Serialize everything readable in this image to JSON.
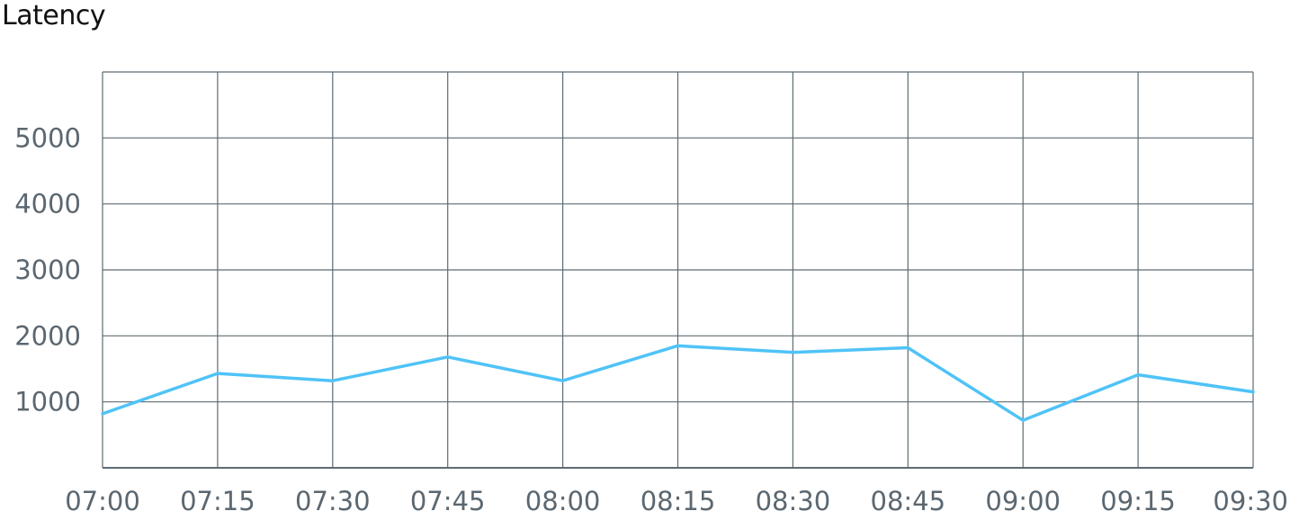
{
  "chart_data": {
    "type": "line",
    "title": "Latency",
    "xlabel": "",
    "ylabel": "",
    "x": [
      "07:00",
      "07:15",
      "07:30",
      "07:45",
      "08:00",
      "08:15",
      "08:30",
      "08:45",
      "09:00",
      "09:15",
      "09:30"
    ],
    "y_ticks": [
      "1000",
      "2000",
      "3000",
      "4000",
      "5000"
    ],
    "ylim": [
      0,
      6000
    ],
    "grid": true,
    "series": [
      {
        "values": [
          820,
          1430,
          1320,
          1680,
          1320,
          1850,
          1750,
          1820,
          720,
          1410,
          1150
        ],
        "color": "#4fc3f7"
      }
    ],
    "colors": {
      "grid": "#5e6b73",
      "tick_text": "#5b6770",
      "title_text": "#111111"
    }
  }
}
